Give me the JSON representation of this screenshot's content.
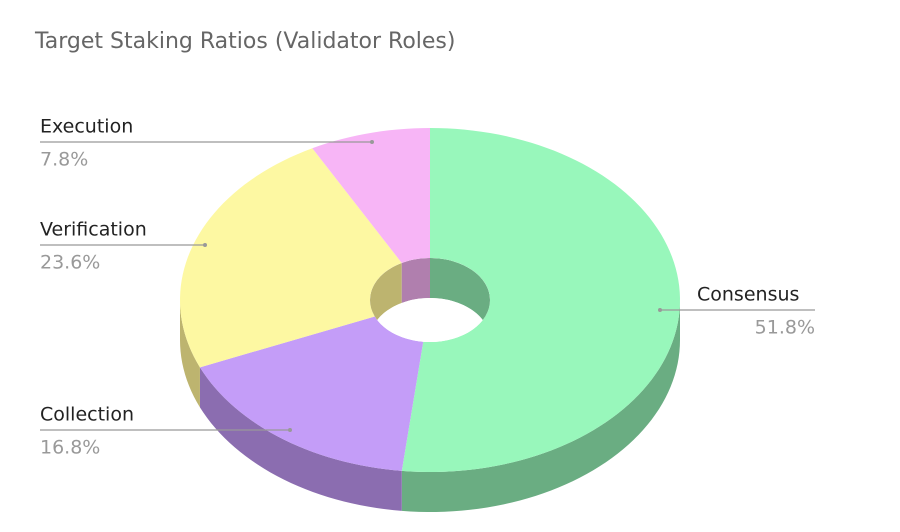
{
  "chart_data": {
    "type": "pie",
    "style": "3d-donut",
    "title": "Target Staking Ratios (Validator Roles)",
    "categories": [
      "Consensus",
      "Collection",
      "Verification",
      "Execution"
    ],
    "values": [
      51.8,
      16.8,
      23.6,
      7.8
    ],
    "value_labels": [
      "51.8%",
      "16.8%",
      "23.6%",
      "7.8%"
    ],
    "colors": [
      "#98f7bb",
      "#c49df8",
      "#fdf8a2",
      "#f7b5f6"
    ],
    "side_colors": [
      "#6aad82",
      "#8b6db0",
      "#bdb46f",
      "#b07fae"
    ]
  }
}
